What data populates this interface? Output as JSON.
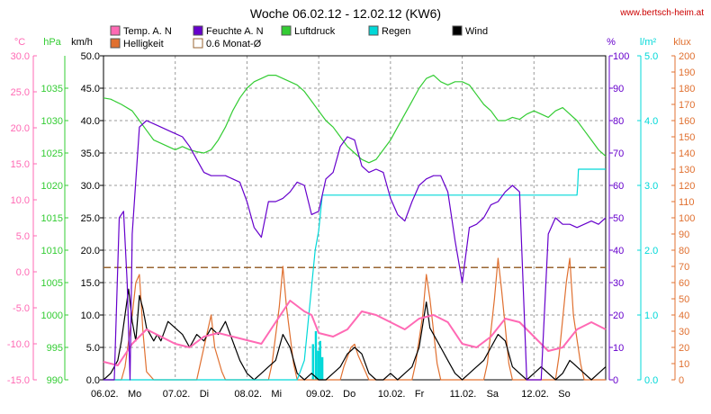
{
  "title": "Woche 06.02.12 - 12.02.12 (KW6)",
  "site": "www.bertsch-heim.at",
  "colors": {
    "temp": "#ff69b4",
    "hum": "#6600cc",
    "press": "#33cc33",
    "rain": "#00d8d8",
    "wind": "#000000",
    "light": "#e07030",
    "avg": "#996633",
    "grid": "#9a9a9a",
    "site": "#cc0000"
  },
  "legend": [
    {
      "key": "temp",
      "label": "Temp. A. N",
      "box": "filled"
    },
    {
      "key": "hum",
      "label": "Feuchte A. N",
      "box": "filled"
    },
    {
      "key": "press",
      "label": "Luftdruck",
      "box": "filled"
    },
    {
      "key": "rain",
      "label": "Regen",
      "box": "filled"
    },
    {
      "key": "wind",
      "label": "Wind",
      "box": "filled"
    },
    {
      "key": "light",
      "label": "Helligkeit",
      "box": "filled"
    },
    {
      "key": "avg",
      "label": "0.6 Monat-Ø",
      "box": "outline"
    }
  ],
  "chart_data": {
    "type": "line",
    "x_tick_labels": [
      "06.02.",
      "Mo",
      "07.02.",
      "Di",
      "08.02.",
      "Mi",
      "09.02.",
      "Do",
      "10.02.",
      "Fr",
      "11.02.",
      "Sa",
      "12.02.",
      "So"
    ],
    "axes": {
      "temp": {
        "unit": "°C",
        "ylim": [
          -15,
          30
        ],
        "ticks": [
          "30.0",
          "25.0",
          "20.0",
          "15.0",
          "10.0",
          "5.0",
          "0.0",
          "-5.0",
          "-10.0",
          "-15.0"
        ]
      },
      "press": {
        "unit": "hPa",
        "ylim": [
          990,
          1040
        ],
        "ticks": [
          "1035",
          "1030",
          "1025",
          "1020",
          "1015",
          "1010",
          "1005",
          "1000",
          "995",
          "990"
        ]
      },
      "wind": {
        "unit": "km/h",
        "ylim": [
          0,
          50
        ],
        "ticks": [
          "50.0",
          "45.0",
          "40.0",
          "35.0",
          "30.0",
          "25.0",
          "20.0",
          "15.0",
          "10.0",
          "5.0",
          "0.0"
        ]
      },
      "hum": {
        "unit": "%",
        "ylim": [
          0,
          100
        ],
        "ticks": [
          "100",
          "90",
          "80",
          "70",
          "60",
          "50",
          "40",
          "30",
          "20",
          "10",
          "0"
        ]
      },
      "rain": {
        "unit": "l/m²",
        "ylim": [
          0,
          5
        ],
        "ticks": [
          "5.0",
          "4.0",
          "3.0",
          "2.0",
          "1.0",
          "0.0"
        ]
      },
      "light": {
        "unit": "klux",
        "ylim": [
          0,
          200
        ],
        "ticks": [
          "200",
          "190",
          "180",
          "170",
          "160",
          "150",
          "140",
          "130",
          "120",
          "110",
          "100",
          "90",
          "80",
          "70",
          "60",
          "50",
          "40",
          "30",
          "20",
          "10",
          "0"
        ]
      }
    },
    "x_range_days": [
      0,
      7
    ],
    "avg_temp_line": 0.6,
    "series": [
      {
        "key": "press",
        "name": "Luftdruck",
        "axis": "press",
        "x": [
          0,
          0.1,
          0.25,
          0.4,
          0.5,
          0.6,
          0.7,
          0.8,
          0.9,
          1.0,
          1.1,
          1.2,
          1.3,
          1.4,
          1.5,
          1.6,
          1.7,
          1.8,
          1.9,
          2.0,
          2.1,
          2.2,
          2.3,
          2.4,
          2.5,
          2.6,
          2.7,
          2.8,
          2.9,
          3.0,
          3.1,
          3.2,
          3.3,
          3.4,
          3.5,
          3.6,
          3.7,
          3.8,
          3.9,
          4.0,
          4.1,
          4.2,
          4.3,
          4.4,
          4.5,
          4.6,
          4.7,
          4.8,
          4.9,
          5.0,
          5.1,
          5.2,
          5.3,
          5.4,
          5.5,
          5.6,
          5.7,
          5.8,
          5.9,
          6.0,
          6.1,
          6.2,
          6.3,
          6.4,
          6.5,
          6.6,
          6.7,
          6.8,
          6.9,
          7.0
        ],
        "y": [
          1033.5,
          1033.3,
          1032.5,
          1031.5,
          1030,
          1028.5,
          1027,
          1026.5,
          1026,
          1025.5,
          1026,
          1025.5,
          1025.2,
          1025,
          1025.5,
          1027,
          1029,
          1031.5,
          1033.5,
          1035,
          1036,
          1036.5,
          1037,
          1037,
          1036.5,
          1036,
          1035.5,
          1034.5,
          1033,
          1031.5,
          1030,
          1029,
          1027.5,
          1026,
          1025,
          1024,
          1023.5,
          1024,
          1025.5,
          1027,
          1029,
          1031,
          1033,
          1035,
          1036.5,
          1037,
          1036,
          1035.5,
          1036,
          1036,
          1035.5,
          1034,
          1032.5,
          1031.5,
          1030,
          1030,
          1030.5,
          1030.2,
          1031,
          1031.5,
          1031,
          1030.5,
          1031.5,
          1032,
          1031,
          1030,
          1028.5,
          1027,
          1025.5,
          1024.5
        ]
      },
      {
        "key": "hum",
        "name": "Feuchte A. N",
        "axis": "hum",
        "x": [
          0,
          0.05,
          0.15,
          0.22,
          0.28,
          0.33,
          0.37,
          0.4,
          0.5,
          0.6,
          0.7,
          0.8,
          0.9,
          1.0,
          1.1,
          1.2,
          1.3,
          1.4,
          1.5,
          1.6,
          1.7,
          1.8,
          1.9,
          2.0,
          2.1,
          2.2,
          2.3,
          2.4,
          2.5,
          2.6,
          2.7,
          2.8,
          2.9,
          3.0,
          3.1,
          3.2,
          3.3,
          3.4,
          3.5,
          3.6,
          3.7,
          3.8,
          3.9,
          4.0,
          4.1,
          4.2,
          4.3,
          4.4,
          4.5,
          4.6,
          4.7,
          4.8,
          4.9,
          5.0,
          5.1,
          5.2,
          5.3,
          5.4,
          5.5,
          5.6,
          5.7,
          5.8,
          5.9,
          6.0,
          6.1,
          6.2,
          6.3,
          6.4,
          6.5,
          6.6,
          6.7,
          6.8,
          6.9,
          7.0
        ],
        "y": [
          0,
          0,
          0,
          50,
          52,
          30,
          0,
          45,
          78,
          80,
          79,
          78,
          77,
          76,
          75,
          72,
          68,
          64,
          63,
          63,
          63,
          62,
          61,
          55,
          47,
          44,
          55,
          55,
          56,
          58,
          61,
          60,
          51,
          52,
          62,
          64,
          72,
          75,
          74,
          66,
          64,
          65,
          64,
          56,
          51,
          49,
          55,
          60,
          62,
          63,
          63,
          58,
          43,
          30,
          47,
          48,
          50,
          54,
          55,
          58,
          60,
          58,
          0,
          0,
          0,
          45,
          50,
          48,
          48,
          47,
          48,
          49,
          48,
          50
        ]
      },
      {
        "key": "temp",
        "name": "Temp. A. N",
        "axis": "temp",
        "x": [
          0,
          0.2,
          0.4,
          0.6,
          0.8,
          1.0,
          1.2,
          1.4,
          1.6,
          1.8,
          2.0,
          2.2,
          2.4,
          2.6,
          2.8,
          2.9,
          3.0,
          3.2,
          3.4,
          3.6,
          3.8,
          4.0,
          4.2,
          4.4,
          4.6,
          4.8,
          5.0,
          5.2,
          5.4,
          5.6,
          5.8,
          6.0,
          6.2,
          6.4,
          6.6,
          6.8,
          7.0
        ],
        "y": [
          -12.5,
          -13,
          -10,
          -8,
          -9,
          -10,
          -10.5,
          -9,
          -8.5,
          -9,
          -9.5,
          -10,
          -7,
          -4,
          -5.5,
          -6,
          -8.5,
          -9,
          -8,
          -5.5,
          -6,
          -7,
          -8,
          -6.5,
          -6,
          -7,
          -10,
          -10.5,
          -9,
          -6.5,
          -7,
          -9,
          -11,
          -10.5,
          -8,
          -7,
          -8
        ]
      },
      {
        "key": "rain",
        "name": "Regen",
        "axis": "rain",
        "x": [
          0,
          2.7,
          2.8,
          2.95,
          3.0,
          3.05,
          5.0,
          6.5,
          6.6,
          6.61,
          6.62,
          7.0
        ],
        "y": [
          0,
          0,
          0.3,
          2.0,
          2.3,
          2.85,
          2.85,
          2.85,
          2.85,
          3.0,
          3.25,
          3.25
        ]
      },
      {
        "key": "light",
        "name": "Helligkeit",
        "axis": "light",
        "x": [
          0,
          0.25,
          0.3,
          0.4,
          0.45,
          0.5,
          0.55,
          0.6,
          0.7,
          0.75,
          1.0,
          1.3,
          1.35,
          1.45,
          1.5,
          1.55,
          1.65,
          1.7,
          2.0,
          2.3,
          2.35,
          2.45,
          2.5,
          2.55,
          2.65,
          2.7,
          3.0,
          3.3,
          3.35,
          3.45,
          3.5,
          3.55,
          3.65,
          3.7,
          4.0,
          4.3,
          4.35,
          4.45,
          4.5,
          4.55,
          4.65,
          4.7,
          5.0,
          5.3,
          5.35,
          5.45,
          5.5,
          5.55,
          5.65,
          5.7,
          6.0,
          6.3,
          6.35,
          6.45,
          6.5,
          6.55,
          6.65,
          6.7,
          7.0
        ],
        "y": [
          0,
          0,
          8,
          40,
          60,
          65,
          30,
          5,
          0,
          0,
          0,
          0,
          10,
          30,
          40,
          20,
          5,
          0,
          0,
          0,
          10,
          45,
          70,
          45,
          10,
          0,
          0,
          0,
          8,
          20,
          22,
          15,
          5,
          0,
          0,
          0,
          10,
          40,
          65,
          50,
          10,
          0,
          0,
          0,
          10,
          50,
          75,
          55,
          10,
          0,
          0,
          0,
          15,
          60,
          75,
          40,
          10,
          0,
          0
        ]
      },
      {
        "key": "wind",
        "name": "Wind",
        "axis": "wind",
        "x": [
          0,
          0.1,
          0.2,
          0.25,
          0.3,
          0.35,
          0.4,
          0.45,
          0.5,
          0.55,
          0.6,
          0.65,
          0.7,
          0.75,
          0.8,
          0.9,
          1.0,
          1.1,
          1.2,
          1.3,
          1.4,
          1.5,
          1.6,
          1.7,
          1.8,
          1.9,
          2.0,
          2.1,
          2.2,
          2.3,
          2.4,
          2.5,
          2.6,
          2.7,
          2.8,
          2.9,
          3.0,
          3.1,
          3.2,
          3.3,
          3.4,
          3.5,
          3.6,
          3.7,
          3.8,
          3.9,
          4.0,
          4.1,
          4.2,
          4.3,
          4.4,
          4.5,
          4.55,
          4.6,
          4.7,
          4.8,
          4.9,
          5.0,
          5.1,
          5.2,
          5.3,
          5.4,
          5.5,
          5.6,
          5.7,
          5.8,
          5.9,
          6.0,
          6.1,
          6.2,
          6.3,
          6.4,
          6.5,
          6.6,
          6.7,
          6.8,
          6.9,
          7.0
        ],
        "y": [
          0,
          1,
          3,
          6,
          10,
          14,
          9,
          6,
          13,
          11,
          8,
          7,
          6,
          7,
          6,
          9,
          8,
          7,
          5,
          7,
          6,
          8,
          7,
          9,
          6,
          3,
          1,
          0,
          1,
          2,
          3,
          7,
          5,
          1,
          0,
          1,
          0,
          0,
          1,
          2,
          4,
          5,
          4,
          1,
          0,
          0,
          1,
          0,
          1,
          2,
          5,
          12,
          8,
          7,
          5,
          3,
          1,
          0,
          1,
          2,
          3,
          5,
          7,
          6,
          2,
          1,
          0,
          1,
          2,
          1,
          0,
          1,
          3,
          2,
          1,
          0,
          1,
          2
        ]
      }
    ]
  }
}
